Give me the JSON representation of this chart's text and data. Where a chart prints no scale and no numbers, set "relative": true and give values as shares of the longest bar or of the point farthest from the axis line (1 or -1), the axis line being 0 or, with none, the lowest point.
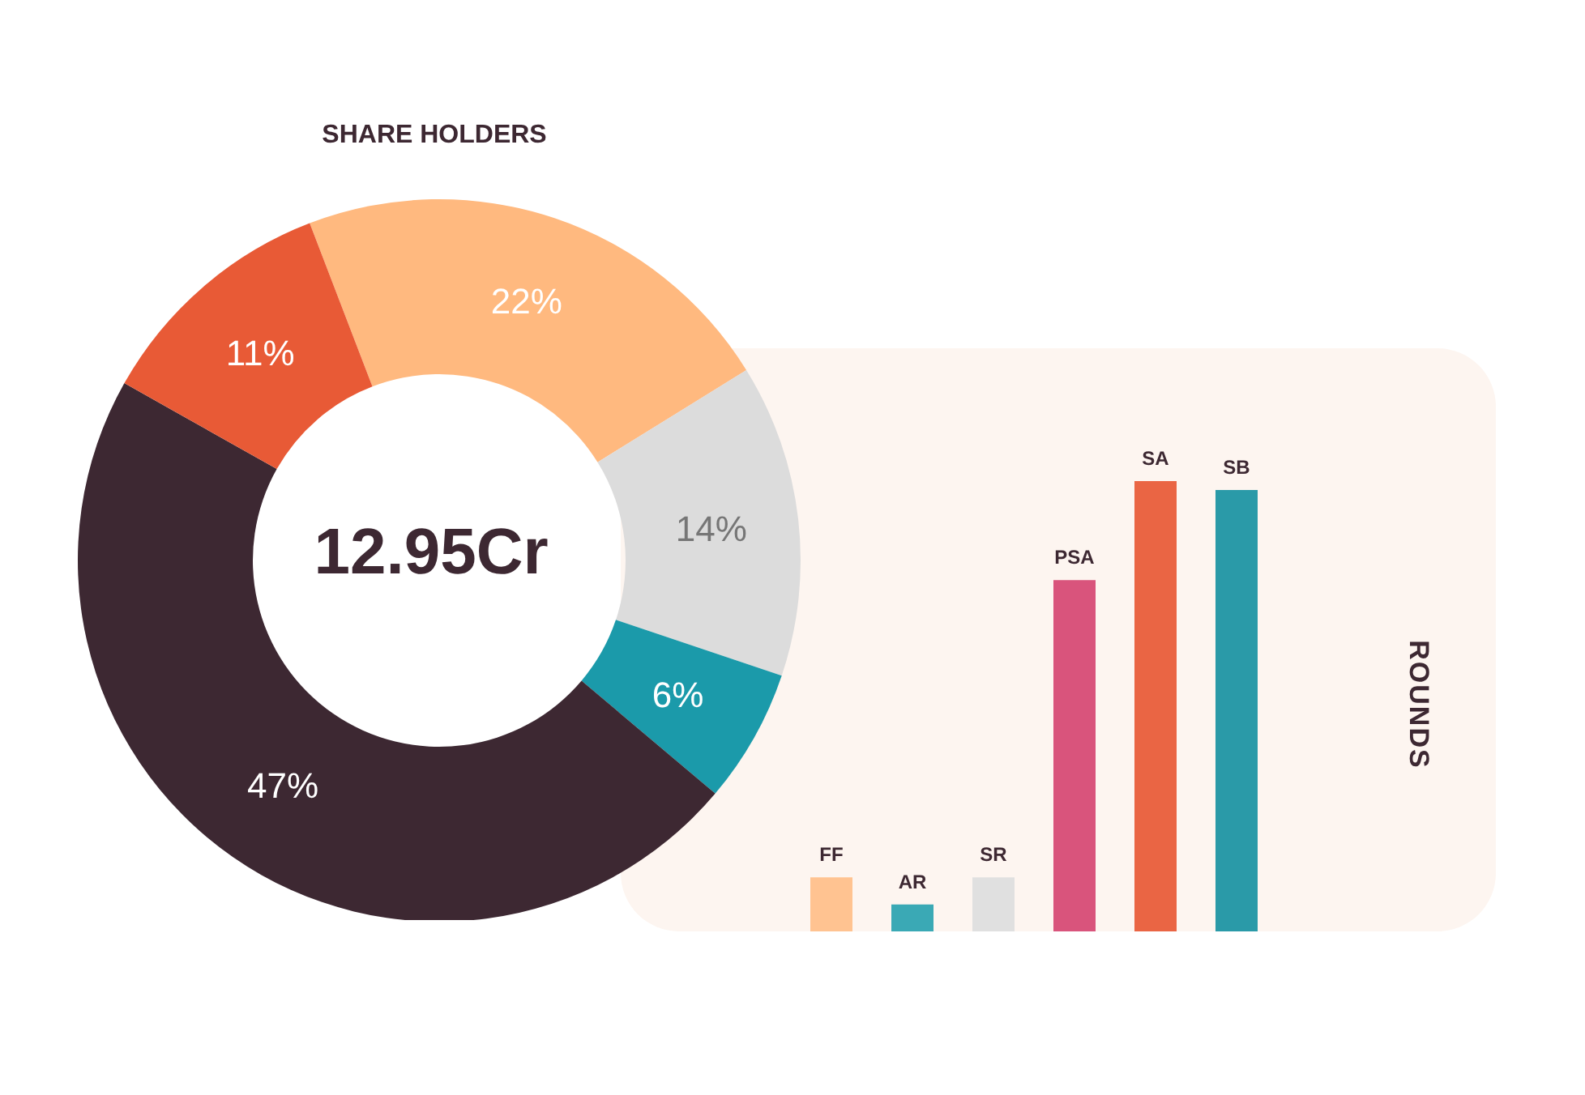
{
  "chart_data": [
    {
      "type": "donut",
      "title": "SHARE HOLDERS",
      "categories": [
        null,
        null,
        null,
        null,
        null
      ],
      "values": [
        22,
        14,
        6,
        47,
        11
      ],
      "colors": [
        "#ffb97f",
        "#dcdcdc",
        "#1b9aaa",
        "#3d2832",
        "#e85a36"
      ],
      "value_labels": [
        "22%",
        "14%",
        "6%",
        "47%",
        "11%"
      ],
      "annotations": [
        "12.95Cr"
      ]
    },
    {
      "type": "bar",
      "ylabel": "ROUNDS",
      "categories": [
        "FF",
        "AR",
        "SR",
        "PSA",
        "SA",
        "SB"
      ],
      "values": [
        0.12,
        0.06,
        0.12,
        0.78,
        1,
        0.98
      ],
      "colors": [
        "#ffc391",
        "#3aa9b5",
        "#e0e0e0",
        "#d9547c",
        "#ea6544",
        "#2a9aa8"
      ],
      "relative": true
    }
  ]
}
